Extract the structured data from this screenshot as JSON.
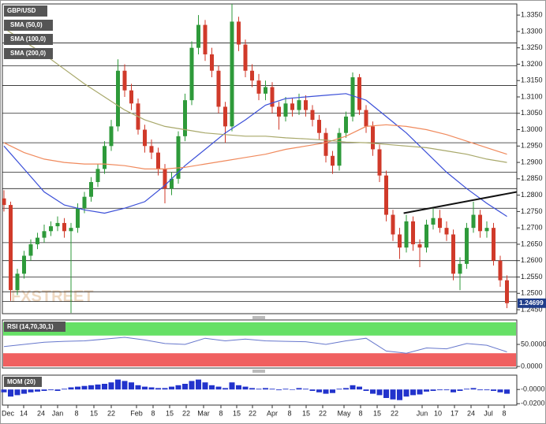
{
  "chart_data": {
    "type": "candlestick",
    "title": "GBP/USD",
    "up_color": "#2e9a3a",
    "down_color": "#d03a2a",
    "candles": [
      [
        1.279,
        1.2815,
        1.275,
        1.277
      ],
      [
        1.277,
        1.278,
        1.2477,
        1.251
      ],
      [
        1.251,
        1.2575,
        1.2495,
        1.256
      ],
      [
        1.256,
        1.263,
        1.2545,
        1.2615
      ],
      [
        1.2615,
        1.2665,
        1.26,
        1.265
      ],
      [
        1.265,
        1.2685,
        1.2635,
        1.267
      ],
      [
        1.267,
        1.271,
        1.2655,
        1.269
      ],
      [
        1.269,
        1.272,
        1.2675,
        1.2705
      ],
      [
        1.2705,
        1.2735,
        1.269,
        1.2715
      ],
      [
        1.2715,
        1.273,
        1.267,
        1.269
      ],
      [
        1.269,
        1.2715,
        1.244,
        1.27
      ],
      [
        1.27,
        1.2775,
        1.2685,
        1.276
      ],
      [
        1.276,
        1.281,
        1.2745,
        1.2795
      ],
      [
        1.2795,
        1.2855,
        1.278,
        1.284
      ],
      [
        1.284,
        1.2895,
        1.2825,
        1.288
      ],
      [
        1.288,
        1.2965,
        1.2865,
        1.295
      ],
      [
        1.295,
        1.303,
        1.2935,
        1.301
      ],
      [
        1.301,
        1.3215,
        1.2995,
        1.318
      ],
      [
        1.318,
        1.32,
        1.31,
        1.312
      ],
      [
        1.312,
        1.314,
        1.306,
        1.308
      ],
      [
        1.308,
        1.3095,
        1.2985,
        1.3
      ],
      [
        1.3,
        1.3015,
        1.293,
        1.295
      ],
      [
        1.295,
        1.297,
        1.291,
        1.293
      ],
      [
        1.293,
        1.2945,
        1.286,
        1.288
      ],
      [
        1.288,
        1.2895,
        1.2775,
        1.282
      ],
      [
        1.282,
        1.287,
        1.28,
        1.285
      ],
      [
        1.285,
        1.2995,
        1.2835,
        1.298
      ],
      [
        1.298,
        1.311,
        1.2965,
        1.309
      ],
      [
        1.309,
        1.327,
        1.3075,
        1.325
      ],
      [
        1.325,
        1.335,
        1.323,
        1.332
      ],
      [
        1.332,
        1.3335,
        1.321,
        1.323
      ],
      [
        1.323,
        1.325,
        1.316,
        1.318
      ],
      [
        1.318,
        1.3195,
        1.305,
        1.307
      ],
      [
        1.307,
        1.3085,
        1.296,
        1.301
      ],
      [
        1.301,
        1.3385,
        1.2995,
        1.333
      ],
      [
        1.333,
        1.3345,
        1.324,
        1.326
      ],
      [
        1.326,
        1.3275,
        1.316,
        1.318
      ],
      [
        1.318,
        1.32,
        1.313,
        1.315
      ],
      [
        1.315,
        1.317,
        1.309,
        1.311
      ],
      [
        1.311,
        1.315,
        1.309,
        1.313
      ],
      [
        1.313,
        1.3145,
        1.305,
        1.307
      ],
      [
        1.307,
        1.3085,
        1.3,
        1.304
      ],
      [
        1.304,
        1.31,
        1.3025,
        1.308
      ],
      [
        1.308,
        1.3095,
        1.304,
        1.306
      ],
      [
        1.306,
        1.311,
        1.3045,
        1.309
      ],
      [
        1.309,
        1.3105,
        1.304,
        1.306
      ],
      [
        1.306,
        1.3075,
        1.301,
        1.303
      ],
      [
        1.303,
        1.3045,
        1.297,
        1.299
      ],
      [
        1.299,
        1.3005,
        1.29,
        1.292
      ],
      [
        1.292,
        1.2935,
        1.2865,
        1.289
      ],
      [
        1.289,
        1.3005,
        1.2875,
        1.299
      ],
      [
        1.299,
        1.3055,
        1.2975,
        1.304
      ],
      [
        1.304,
        1.3175,
        1.3025,
        1.316
      ],
      [
        1.316,
        1.317,
        1.3045,
        1.306
      ],
      [
        1.306,
        1.3075,
        1.299,
        1.301
      ],
      [
        1.301,
        1.3025,
        1.292,
        1.294
      ],
      [
        1.294,
        1.2955,
        1.284,
        1.286
      ],
      [
        1.286,
        1.2875,
        1.272,
        1.274
      ],
      [
        1.274,
        1.2755,
        1.266,
        1.268
      ],
      [
        1.268,
        1.27,
        1.2605,
        1.264
      ],
      [
        1.264,
        1.274,
        1.2625,
        1.272
      ],
      [
        1.272,
        1.2735,
        1.263,
        1.265
      ],
      [
        1.265,
        1.2665,
        1.258,
        1.264
      ],
      [
        1.264,
        1.2725,
        1.2625,
        1.271
      ],
      [
        1.271,
        1.276,
        1.2695,
        1.273
      ],
      [
        1.273,
        1.2755,
        1.2685,
        1.27
      ],
      [
        1.27,
        1.272,
        1.266,
        1.268
      ],
      [
        1.268,
        1.2695,
        1.254,
        1.256
      ],
      [
        1.256,
        1.261,
        1.251,
        1.259
      ],
      [
        1.259,
        1.2715,
        1.2575,
        1.27
      ],
      [
        1.27,
        1.278,
        1.2685,
        1.274
      ],
      [
        1.274,
        1.2755,
        1.267,
        1.269
      ],
      [
        1.269,
        1.272,
        1.267,
        1.27
      ],
      [
        1.27,
        1.2715,
        1.2585,
        1.26
      ],
      [
        1.26,
        1.2615,
        1.252,
        1.254
      ],
      [
        1.254,
        1.2555,
        1.2455,
        1.247
      ]
    ],
    "ylim": [
      1.2438,
      1.3384
    ],
    "yticks": [
      {
        "value": 1.335,
        "label": "1.3350"
      },
      {
        "value": 1.33,
        "label": "1.3300"
      },
      {
        "value": 1.325,
        "label": "1.3250"
      },
      {
        "value": 1.32,
        "label": "1.3200"
      },
      {
        "value": 1.315,
        "label": "1.3150"
      },
      {
        "value": 1.31,
        "label": "1.3100"
      },
      {
        "value": 1.305,
        "label": "1.3050"
      },
      {
        "value": 1.3,
        "label": "1.3000"
      },
      {
        "value": 1.295,
        "label": "1.2950"
      },
      {
        "value": 1.29,
        "label": "1.2900"
      },
      {
        "value": 1.285,
        "label": "1.2850"
      },
      {
        "value": 1.28,
        "label": "1.2800"
      },
      {
        "value": 1.275,
        "label": "1.2750"
      },
      {
        "value": 1.27,
        "label": "1.2700"
      },
      {
        "value": 1.265,
        "label": "1.2650"
      },
      {
        "value": 1.26,
        "label": "1.2600"
      },
      {
        "value": 1.255,
        "label": "1.2550"
      },
      {
        "value": 1.25,
        "label": "1.2500"
      },
      {
        "value": 1.245,
        "label": "1.2450"
      }
    ],
    "last_price": 1.24699,
    "levels": [
      1.3265,
      1.3195,
      1.3135,
      1.305,
      1.296,
      1.287,
      1.282,
      1.276,
      1.2655,
      1.26,
      1.255,
      1.2505,
      1.2475
    ],
    "trendline": {
      "x": [
        59.6,
        76.5
      ],
      "values": [
        1.2745,
        1.281
      ]
    },
    "sma_x": [
      0,
      3,
      6,
      9,
      12,
      15,
      18,
      21,
      24,
      27,
      30,
      33,
      36,
      39,
      42,
      45,
      48,
      51,
      54,
      57,
      60,
      63,
      66,
      69,
      72,
      75
    ],
    "series": [
      {
        "name": "SMA (50,0)",
        "color": "#3b4fd8",
        "values": [
          1.295,
          1.288,
          1.281,
          1.277,
          1.2755,
          1.2745,
          1.276,
          1.278,
          1.283,
          1.289,
          1.294,
          1.299,
          1.303,
          1.3075,
          1.3095,
          1.31,
          1.3105,
          1.311,
          1.309,
          1.304,
          1.299,
          1.293,
          1.287,
          1.282,
          1.2775,
          1.2735
        ]
      },
      {
        "name": "SMA (100,0)",
        "color": "#f08a5d",
        "values": [
          1.296,
          1.293,
          1.291,
          1.29,
          1.2895,
          1.2895,
          1.289,
          1.288,
          1.288,
          1.2885,
          1.2895,
          1.2905,
          1.2915,
          1.2925,
          1.294,
          1.295,
          1.296,
          1.298,
          1.301,
          1.3015,
          1.301,
          1.3,
          1.2985,
          1.2965,
          1.2945,
          1.2925
        ]
      },
      {
        "name": "SMA (200,0)",
        "color": "#a8a86a",
        "values": [
          1.331,
          1.327,
          1.323,
          1.3185,
          1.314,
          1.31,
          1.306,
          1.303,
          1.301,
          1.3,
          1.299,
          1.2985,
          1.298,
          1.298,
          1.2975,
          1.2972,
          1.2968,
          1.2962,
          1.296,
          1.2955,
          1.295,
          1.2945,
          1.2935,
          1.2925,
          1.291,
          1.29
        ]
      }
    ],
    "x_labels": [
      "Dec",
      "14",
      "24",
      "Jan",
      "8",
      "15",
      "22",
      "Feb",
      "8",
      "15",
      "22",
      "Mar",
      "8",
      "15",
      "22",
      "Apr",
      "8",
      "15",
      "22",
      "May",
      "8",
      "15",
      "22",
      "Jun",
      "10",
      "17",
      "24",
      "Jul",
      "8"
    ],
    "watermark": "FXSTREET",
    "rsi": {
      "name": "RSI (14,70,30,1)",
      "color": "#6677cc",
      "values": [
        45,
        50,
        55,
        57,
        58,
        62,
        66,
        60,
        52,
        50,
        64,
        58,
        62,
        58,
        57,
        56,
        50,
        58,
        64,
        35,
        30,
        42,
        40,
        52,
        48,
        33
      ],
      "ylim": [
        0,
        100
      ],
      "overbought": 70,
      "oversold": 30,
      "overbought_color": "#66e066",
      "oversold_color": "#f06060",
      "yticks": [
        {
          "value": 50,
          "label": "50.0000"
        },
        {
          "value": 0,
          "label": "0.0000"
        }
      ]
    },
    "momentum": {
      "name": "MOM (20)",
      "color": "#2233cc",
      "values": [
        -0.004,
        -0.01,
        -0.008,
        -0.006,
        -0.004,
        -0.003,
        -0.002,
        -0.001,
        -0.002,
        0.001,
        0.003,
        0.004,
        0.005,
        0.006,
        0.007,
        0.008,
        0.01,
        0.014,
        0.012,
        0.01,
        0.006,
        0.004,
        0.003,
        0.002,
        0.002,
        0.004,
        0.006,
        0.008,
        0.012,
        0.014,
        0.01,
        0.006,
        0.004,
        0.002,
        0.01,
        0.006,
        0.004,
        0.002,
        0.001,
        0.002,
        0.001,
        -0.001,
        0.001,
        0.0,
        0.002,
        0.001,
        -0.002,
        -0.004,
        -0.006,
        -0.005,
        0.001,
        0.002,
        0.006,
        0.004,
        -0.002,
        -0.006,
        -0.008,
        -0.012,
        -0.014,
        -0.015,
        -0.01,
        -0.008,
        -0.007,
        -0.003,
        -0.002,
        -0.001,
        -0.001,
        -0.004,
        -0.002,
        0.001,
        0.002,
        -0.001,
        -0.001,
        -0.002,
        -0.004,
        -0.006
      ],
      "ylim": [
        -0.022,
        0.018
      ],
      "yticks": [
        {
          "value": 0,
          "label": "-0.0000"
        },
        {
          "value": -0.02,
          "label": "-0.0200"
        }
      ]
    }
  }
}
